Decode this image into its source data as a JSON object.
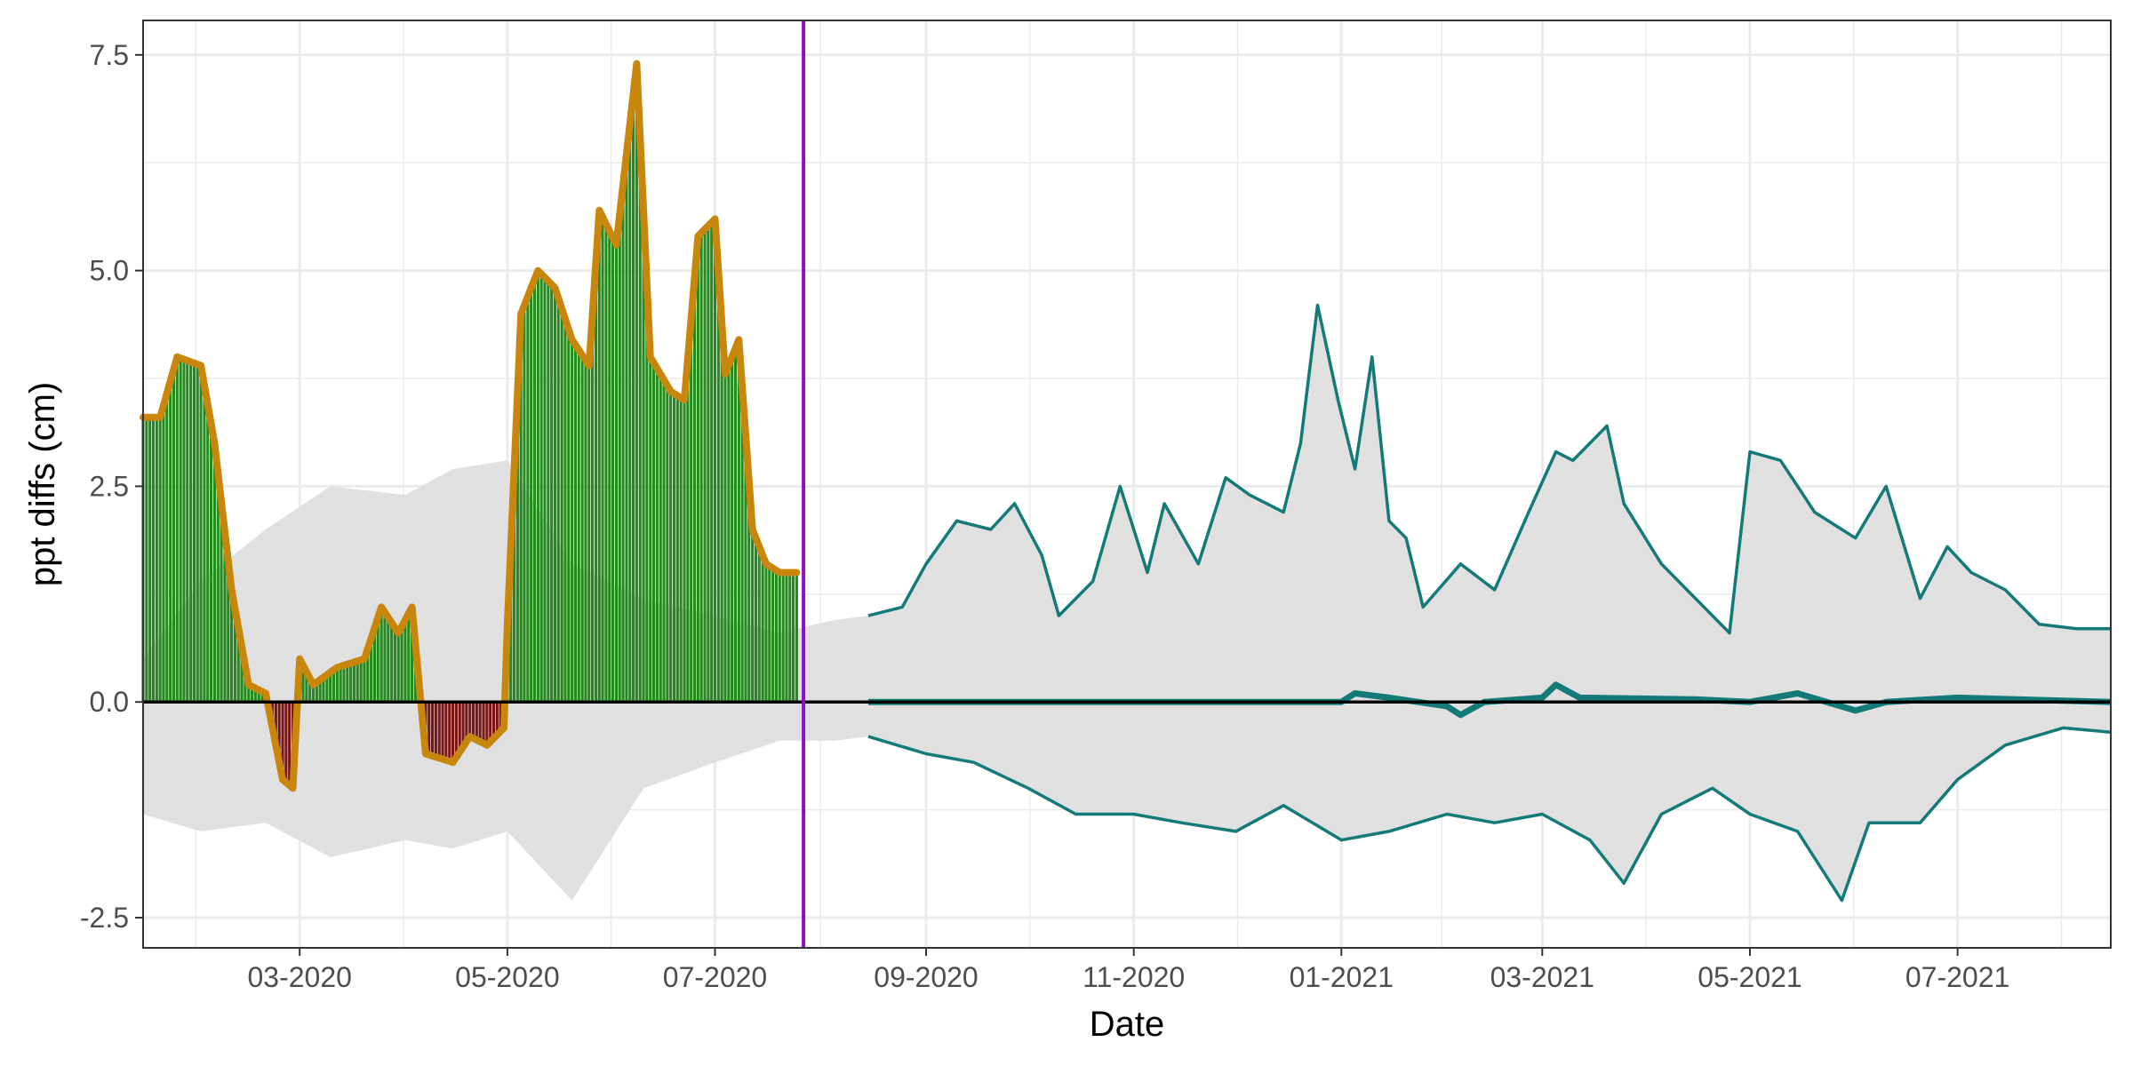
{
  "chart_data": {
    "type": "area",
    "xlabel": "Date",
    "ylabel": "ppt diffs (cm)",
    "x_range": [
      "2020-01-15",
      "2021-08-15"
    ],
    "ylim": [
      -2.85,
      7.9
    ],
    "grid": true,
    "legend": "none",
    "x_ticks": [
      {
        "date": "2020-03-01",
        "label": "03-2020"
      },
      {
        "date": "2020-05-01",
        "label": "05-2020"
      },
      {
        "date": "2020-07-01",
        "label": "07-2020"
      },
      {
        "date": "2020-09-01",
        "label": "09-2020"
      },
      {
        "date": "2020-11-01",
        "label": "11-2020"
      },
      {
        "date": "2021-01-01",
        "label": "01-2021"
      },
      {
        "date": "2021-03-01",
        "label": "03-2021"
      },
      {
        "date": "2021-05-01",
        "label": "05-2021"
      },
      {
        "date": "2021-07-01",
        "label": "07-2021"
      }
    ],
    "y_ticks": [
      {
        "value": -2.5,
        "label": "-2.5"
      },
      {
        "value": 0,
        "label": "0.0"
      },
      {
        "value": 2.5,
        "label": "2.5"
      },
      {
        "value": 5,
        "label": "5.0"
      },
      {
        "value": 7.5,
        "label": "7.5"
      }
    ],
    "colors": {
      "band": "#e0e0e0",
      "positive_bars": "#228b1c",
      "negative_bars": "#7a1616",
      "observed_line": "#c8860d",
      "forecast_line": "#147a78",
      "cutoff_line": "#8b10c8",
      "zero_line": "#000000",
      "grid": "#ebebeb"
    },
    "cutoff_date": "2020-07-27",
    "range_band": {
      "upper": [
        [
          "2020-01-15",
          0.5
        ],
        [
          "2020-02-01",
          1.4
        ],
        [
          "2020-02-20",
          2.0
        ],
        [
          "2020-03-10",
          2.5
        ],
        [
          "2020-04-01",
          2.4
        ],
        [
          "2020-04-15",
          2.7
        ],
        [
          "2020-05-01",
          2.8
        ],
        [
          "2020-05-20",
          1.6
        ],
        [
          "2020-06-10",
          1.2
        ],
        [
          "2020-07-01",
          1.0
        ],
        [
          "2020-07-20",
          0.8
        ],
        [
          "2020-08-05",
          0.95
        ],
        [
          "2020-08-15",
          1.0
        ]
      ],
      "lower": [
        [
          "2020-01-15",
          -1.3
        ],
        [
          "2020-02-01",
          -1.5
        ],
        [
          "2020-02-20",
          -1.4
        ],
        [
          "2020-03-10",
          -1.8
        ],
        [
          "2020-04-01",
          -1.6
        ],
        [
          "2020-04-15",
          -1.7
        ],
        [
          "2020-05-01",
          -1.5
        ],
        [
          "2020-05-20",
          -2.3
        ],
        [
          "2020-06-10",
          -1.0
        ],
        [
          "2020-07-01",
          -0.7
        ],
        [
          "2020-07-20",
          -0.45
        ],
        [
          "2020-08-05",
          -0.45
        ],
        [
          "2020-08-15",
          -0.4
        ]
      ]
    },
    "observed": [
      [
        "2020-01-15",
        3.3
      ],
      [
        "2020-01-20",
        3.3
      ],
      [
        "2020-01-25",
        4.0
      ],
      [
        "2020-02-01",
        3.9
      ],
      [
        "2020-02-05",
        3.0
      ],
      [
        "2020-02-10",
        1.3
      ],
      [
        "2020-02-15",
        0.2
      ],
      [
        "2020-02-20",
        0.1
      ],
      [
        "2020-02-25",
        -0.9
      ],
      [
        "2020-02-28",
        -1.0
      ],
      [
        "2020-03-01",
        0.5
      ],
      [
        "2020-03-05",
        0.2
      ],
      [
        "2020-03-12",
        0.4
      ],
      [
        "2020-03-20",
        0.5
      ],
      [
        "2020-03-25",
        1.1
      ],
      [
        "2020-03-30",
        0.8
      ],
      [
        "2020-04-03",
        1.1
      ],
      [
        "2020-04-07",
        -0.6
      ],
      [
        "2020-04-15",
        -0.7
      ],
      [
        "2020-04-20",
        -0.4
      ],
      [
        "2020-04-25",
        -0.5
      ],
      [
        "2020-04-30",
        -0.3
      ],
      [
        "2020-05-01",
        0.9
      ],
      [
        "2020-05-05",
        4.5
      ],
      [
        "2020-05-10",
        5.0
      ],
      [
        "2020-05-15",
        4.8
      ],
      [
        "2020-05-20",
        4.2
      ],
      [
        "2020-05-25",
        3.9
      ],
      [
        "2020-05-28",
        5.7
      ],
      [
        "2020-06-02",
        5.3
      ],
      [
        "2020-06-08",
        7.4
      ],
      [
        "2020-06-12",
        4.0
      ],
      [
        "2020-06-18",
        3.6
      ],
      [
        "2020-06-22",
        3.5
      ],
      [
        "2020-06-26",
        5.4
      ],
      [
        "2020-07-01",
        5.6
      ],
      [
        "2020-07-04",
        3.8
      ],
      [
        "2020-07-08",
        4.2
      ],
      [
        "2020-07-12",
        2.0
      ],
      [
        "2020-07-16",
        1.6
      ],
      [
        "2020-07-20",
        1.5
      ],
      [
        "2020-07-25",
        1.5
      ]
    ],
    "forecast_upper": [
      [
        "2020-08-15",
        1.0
      ],
      [
        "2020-08-25",
        1.1
      ],
      [
        "2020-09-01",
        1.6
      ],
      [
        "2020-09-10",
        2.1
      ],
      [
        "2020-09-20",
        2.0
      ],
      [
        "2020-09-27",
        2.3
      ],
      [
        "2020-10-05",
        1.7
      ],
      [
        "2020-10-10",
        1.0
      ],
      [
        "2020-10-20",
        1.4
      ],
      [
        "2020-10-28",
        2.5
      ],
      [
        "2020-11-05",
        1.5
      ],
      [
        "2020-11-10",
        2.3
      ],
      [
        "2020-11-20",
        1.6
      ],
      [
        "2020-11-28",
        2.6
      ],
      [
        "2020-12-05",
        2.4
      ],
      [
        "2020-12-15",
        2.2
      ],
      [
        "2020-12-20",
        3.0
      ],
      [
        "2020-12-25",
        4.6
      ],
      [
        "2020-12-31",
        3.5
      ],
      [
        "2021-01-05",
        2.7
      ],
      [
        "2021-01-10",
        4.0
      ],
      [
        "2021-01-15",
        2.1
      ],
      [
        "2021-01-20",
        1.9
      ],
      [
        "2021-01-25",
        1.1
      ],
      [
        "2021-02-05",
        1.6
      ],
      [
        "2021-02-15",
        1.3
      ],
      [
        "2021-02-25",
        2.2
      ],
      [
        "2021-03-05",
        2.9
      ],
      [
        "2021-03-10",
        2.8
      ],
      [
        "2021-03-20",
        3.2
      ],
      [
        "2021-03-25",
        2.3
      ],
      [
        "2021-04-05",
        1.6
      ],
      [
        "2021-04-15",
        1.2
      ],
      [
        "2021-04-25",
        0.8
      ],
      [
        "2021-05-01",
        2.9
      ],
      [
        "2021-05-10",
        2.8
      ],
      [
        "2021-05-20",
        2.2
      ],
      [
        "2021-06-01",
        1.9
      ],
      [
        "2021-06-10",
        2.5
      ],
      [
        "2021-06-20",
        1.2
      ],
      [
        "2021-06-28",
        1.8
      ],
      [
        "2021-07-05",
        1.5
      ],
      [
        "2021-07-15",
        1.3
      ],
      [
        "2021-07-25",
        0.9
      ],
      [
        "2021-08-05",
        0.85
      ],
      [
        "2021-08-15",
        0.85
      ]
    ],
    "forecast_lower": [
      [
        "2020-08-15",
        -0.4
      ],
      [
        "2020-09-01",
        -0.6
      ],
      [
        "2020-09-15",
        -0.7
      ],
      [
        "2020-10-01",
        -1.0
      ],
      [
        "2020-10-15",
        -1.3
      ],
      [
        "2020-11-01",
        -1.3
      ],
      [
        "2020-11-15",
        -1.4
      ],
      [
        "2020-12-01",
        -1.5
      ],
      [
        "2020-12-15",
        -1.2
      ],
      [
        "2021-01-01",
        -1.6
      ],
      [
        "2021-01-15",
        -1.5
      ],
      [
        "2021-02-01",
        -1.3
      ],
      [
        "2021-02-15",
        -1.4
      ],
      [
        "2021-03-01",
        -1.3
      ],
      [
        "2021-03-15",
        -1.6
      ],
      [
        "2021-03-25",
        -2.1
      ],
      [
        "2021-04-05",
        -1.3
      ],
      [
        "2021-04-20",
        -1.0
      ],
      [
        "2021-05-01",
        -1.3
      ],
      [
        "2021-05-15",
        -1.5
      ],
      [
        "2021-05-28",
        -2.3
      ],
      [
        "2021-06-05",
        -1.4
      ],
      [
        "2021-06-20",
        -1.4
      ],
      [
        "2021-07-01",
        -0.9
      ],
      [
        "2021-07-15",
        -0.5
      ],
      [
        "2021-08-01",
        -0.3
      ],
      [
        "2021-08-15",
        -0.35
      ]
    ],
    "forecast_median": [
      [
        "2020-08-15",
        0.0
      ],
      [
        "2021-01-01",
        0.0
      ],
      [
        "2021-01-05",
        0.1
      ],
      [
        "2021-01-15",
        0.05
      ],
      [
        "2021-02-01",
        -0.05
      ],
      [
        "2021-02-05",
        -0.15
      ],
      [
        "2021-02-12",
        0.0
      ],
      [
        "2021-03-01",
        0.05
      ],
      [
        "2021-03-05",
        0.2
      ],
      [
        "2021-03-12",
        0.05
      ],
      [
        "2021-04-15",
        0.03
      ],
      [
        "2021-05-01",
        0.0
      ],
      [
        "2021-05-15",
        0.1
      ],
      [
        "2021-06-01",
        -0.1
      ],
      [
        "2021-06-10",
        0.0
      ],
      [
        "2021-07-01",
        0.05
      ],
      [
        "2021-08-15",
        0.0
      ]
    ]
  }
}
